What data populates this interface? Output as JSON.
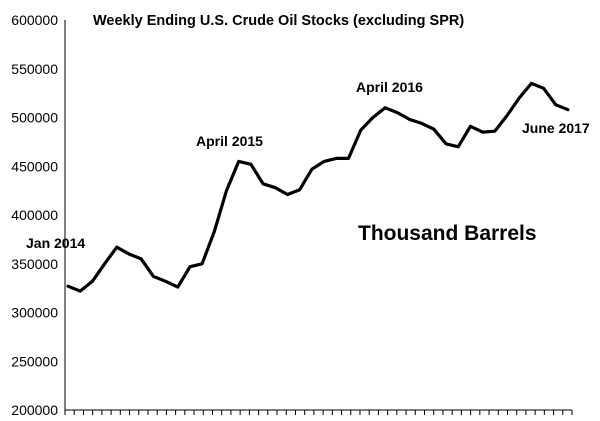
{
  "chart_data": {
    "type": "line",
    "title": "Weekly Ending U.S. Crude Oil Stocks (excluding SPR)",
    "unit_label": "Thousand Barrels",
    "xlabel": "",
    "ylabel": "",
    "ylim": [
      200000,
      600000
    ],
    "yticks": [
      200000,
      250000,
      300000,
      350000,
      400000,
      450000,
      500000,
      550000,
      600000
    ],
    "x_range": [
      "2014-01",
      "2017-06"
    ],
    "grid": false,
    "legend": "none",
    "annotations": [
      {
        "text": "Jan 2014",
        "x": "2014-01"
      },
      {
        "text": "April 2015",
        "x": "2015-04"
      },
      {
        "text": "April 2016",
        "x": "2016-04"
      },
      {
        "text": "June 2017",
        "x": "2017-06"
      }
    ],
    "series": [
      {
        "x": [
          "2014-01",
          "2014-02",
          "2014-03",
          "2014-04",
          "2014-05",
          "2014-06",
          "2014-07",
          "2014-08",
          "2014-09",
          "2014-10",
          "2014-11",
          "2014-12",
          "2015-01",
          "2015-02",
          "2015-03",
          "2015-04",
          "2015-05",
          "2015-06",
          "2015-07",
          "2015-08",
          "2015-09",
          "2015-10",
          "2015-11",
          "2015-12",
          "2016-01",
          "2016-02",
          "2016-03",
          "2016-04",
          "2016-05",
          "2016-06",
          "2016-07",
          "2016-08",
          "2016-09",
          "2016-10",
          "2016-11",
          "2016-12",
          "2017-01",
          "2017-02",
          "2017-03",
          "2017-04",
          "2017-05",
          "2017-06"
        ],
        "values": [
          327000,
          322000,
          332000,
          350000,
          367000,
          360000,
          355000,
          337000,
          332000,
          326000,
          347000,
          350000,
          383000,
          425000,
          455000,
          452000,
          432000,
          428000,
          421000,
          426000,
          447000,
          455000,
          458000,
          458000,
          487000,
          500000,
          510000,
          505000,
          498000,
          494000,
          488000,
          473000,
          470000,
          491000,
          485000,
          486000,
          502000,
          520000,
          535000,
          530000,
          513000,
          508000
        ]
      }
    ]
  }
}
